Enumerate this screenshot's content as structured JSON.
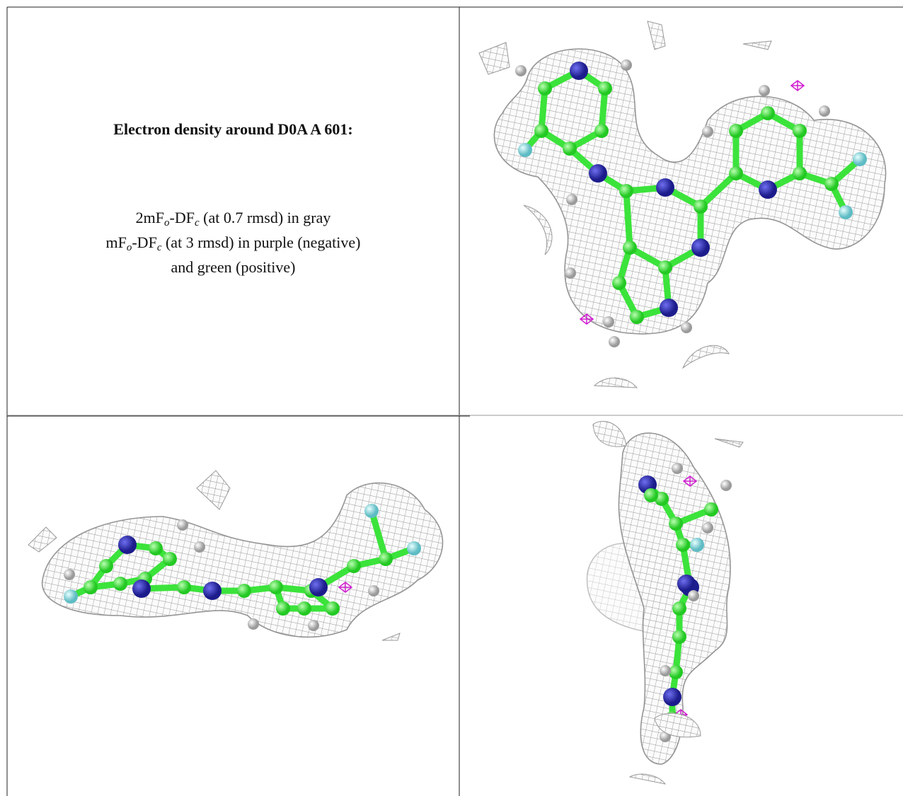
{
  "caption": {
    "title": "Electron density around D0A A 601:",
    "lines": [
      [
        "2mF",
        "o",
        "-DF",
        "c",
        " (at 0.7 rmsd) in gray"
      ],
      [
        "mF",
        "o",
        "-DF",
        "c",
        " (at 3 rmsd) in purple (negative)"
      ],
      [
        "and green (positive)"
      ]
    ]
  }
}
